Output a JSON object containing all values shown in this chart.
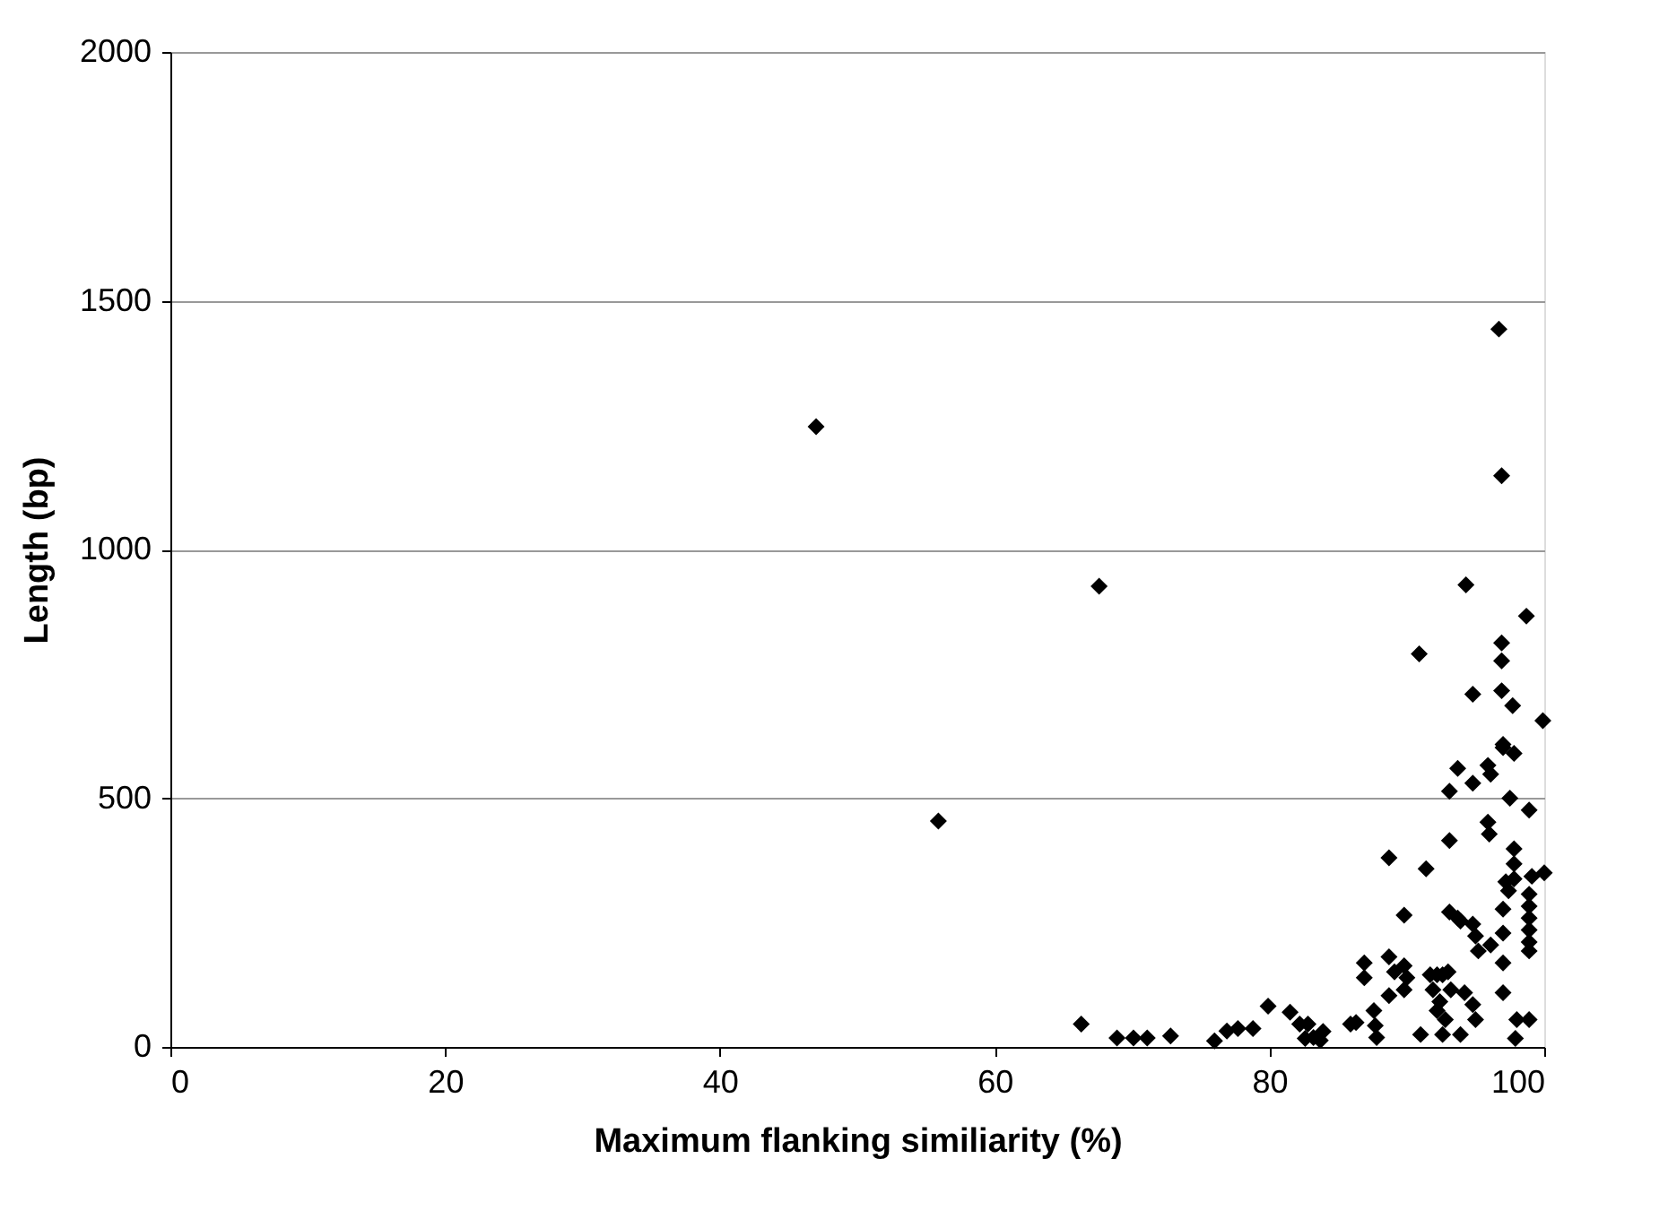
{
  "chart_data": {
    "type": "scatter",
    "xlabel": "Maximum flanking similiarity (%)",
    "ylabel": "Length (bp)",
    "xlim": [
      0,
      100
    ],
    "xticks": [
      0,
      20,
      40,
      60,
      80,
      100
    ],
    "ylim": [
      0,
      2000
    ],
    "yticks": [
      0,
      500,
      1000,
      1500,
      2000
    ],
    "grid": "y",
    "marker": "diamond",
    "series": [
      {
        "color": "#000000",
        "x": [
          47.0,
          55.9,
          67.6,
          66.3,
          68.9,
          70.1,
          71.1,
          72.8,
          76.0,
          76.9,
          77.7,
          78.8,
          79.9,
          81.5,
          82.2,
          82.8,
          83.2,
          83.9,
          82.6,
          83.7,
          85.9,
          86.3,
          86.9,
          86.9,
          87.6,
          87.7,
          87.8,
          88.7,
          88.7,
          89.1,
          89.8,
          90.0,
          88.7,
          89.8,
          89.8,
          91.0,
          91.4,
          90.9,
          91.7,
          92.2,
          92.6,
          93.0,
          91.9,
          92.4,
          92.2,
          93.2,
          92.8,
          92.6,
          93.9,
          93.1,
          93.1,
          93.1,
          93.7,
          93.9,
          93.7,
          94.8,
          94.8,
          94.2,
          94.8,
          95.0,
          94.8,
          95.0,
          95.2,
          95.9,
          96.1,
          97.0,
          95.9,
          96.0,
          96.1,
          96.9,
          96.9,
          96.9,
          97.7,
          97.0,
          97.8,
          97.5,
          97.8,
          97.8,
          97.8,
          97.2,
          97.4,
          97.0,
          97.0,
          97.0,
          97.0,
          98.0,
          98.9,
          97.9,
          98.9,
          98.9,
          98.9,
          98.9,
          98.9,
          98.9,
          98.9,
          100.0,
          99.9,
          98.7,
          99.1,
          96.7,
          96.9,
          94.3
        ],
        "values": [
          1247,
          454,
          926,
          46,
          18,
          18,
          18,
          22,
          12,
          32,
          37,
          37,
          82,
          70,
          46,
          46,
          19,
          31,
          17,
          13,
          46,
          49,
          169,
          139,
          73,
          43,
          19,
          380,
          181,
          151,
          163,
          139,
          103,
          115,
          265,
          25,
          358,
          790,
          145,
          145,
          145,
          151,
          115,
          91,
          73,
          115,
          55,
          25,
          25,
          415,
          514,
          271,
          259,
          253,
          560,
          530,
          709,
          109,
          85,
          55,
          247,
          223,
          193,
          566,
          548,
          608,
          452,
          428,
          205,
          812,
          776,
          716,
          686,
          602,
          590,
          500,
          398,
          368,
          338,
          332,
          314,
          277,
          229,
          169,
          109,
          55,
          55,
          17,
          476,
          307,
          283,
          259,
          235,
          211,
          193,
          350,
          656,
          866,
          343,
          1443,
          1148,
          929
        ]
      }
    ]
  }
}
